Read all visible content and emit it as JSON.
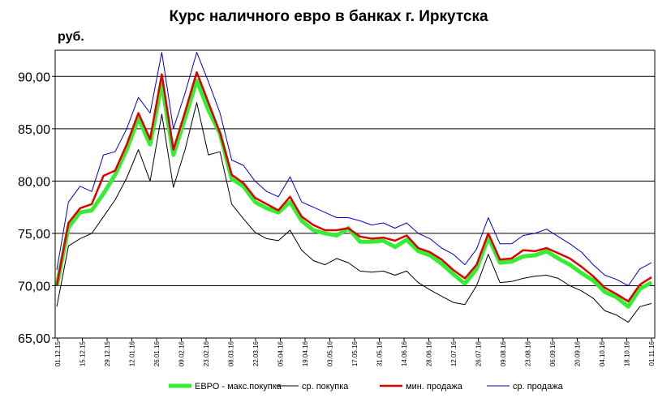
{
  "chart_data": {
    "type": "line",
    "title": "Курс наличного евро в банках г. Иркутска",
    "ylabel": "руб.",
    "xlabel": "",
    "ylim": [
      65,
      92.5
    ],
    "yticks": [
      "65,00",
      "70,00",
      "75,00",
      "80,00",
      "85,00",
      "90,00"
    ],
    "ytick_values": [
      65,
      70,
      75,
      80,
      85,
      90
    ],
    "grid": true,
    "legend_position": "bottom",
    "x_tick_labels": [
      "01.12.15",
      "15.12.15",
      "29.12.15",
      "12.01.16",
      "26.01.16",
      "09.02.16",
      "23.02.16",
      "08.03.16",
      "22.03.16",
      "05.04.16",
      "19.04.16",
      "03.05.16",
      "17.05.16",
      "31.05.16",
      "14.06.16",
      "28.06.16",
      "12.07.16",
      "26.07.16",
      "09.08.16",
      "23.08.16",
      "06.09.16",
      "20.09.16",
      "04.10.16",
      "18.10.16",
      "01.11.16"
    ],
    "x": [
      "01.12.15",
      "08.12.15",
      "15.12.15",
      "22.12.15",
      "29.12.15",
      "05.01.16",
      "12.01.16",
      "19.01.16",
      "22.01.16",
      "26.01.16",
      "02.02.16",
      "06.02.16",
      "09.02.16",
      "16.02.16",
      "23.02.16",
      "01.03.16",
      "08.03.16",
      "15.03.16",
      "22.03.16",
      "29.03.16",
      "05.04.16",
      "12.04.16",
      "19.04.16",
      "26.04.16",
      "03.05.16",
      "10.05.16",
      "17.05.16",
      "24.05.16",
      "31.05.16",
      "07.06.16",
      "14.06.16",
      "21.06.16",
      "28.06.16",
      "05.07.16",
      "12.07.16",
      "19.07.16",
      "26.07.16",
      "02.08.16",
      "09.08.16",
      "16.08.16",
      "23.08.16",
      "30.08.16",
      "06.09.16",
      "13.09.16",
      "20.09.16",
      "27.09.16",
      "04.10.16",
      "11.10.16",
      "18.10.16",
      "25.10.16",
      "01.11.16",
      "03.11.16"
    ],
    "series": [
      {
        "name": "ЕВРО - макс.покупка",
        "color": "#33ee33",
        "values": [
          70.0,
          75.6,
          77.0,
          77.2,
          78.8,
          80.6,
          83.0,
          86.0,
          83.5,
          89.3,
          82.5,
          86.0,
          89.6,
          86.8,
          84.5,
          80.2,
          79.5,
          78.0,
          77.4,
          77.0,
          78.0,
          76.2,
          75.3,
          75.0,
          74.8,
          75.5,
          74.2,
          74.2,
          74.3,
          73.7,
          74.4,
          73.3,
          72.9,
          72.1,
          71.1,
          70.2,
          71.6,
          74.6,
          72.2,
          72.3,
          72.8,
          72.9,
          73.3,
          72.6,
          72.0,
          71.2,
          70.5,
          69.4,
          68.9,
          68.0,
          69.7,
          70.3
        ]
      },
      {
        "name": "ср. покупка",
        "color": "#000000",
        "values": [
          68.0,
          73.8,
          74.5,
          75.0,
          76.6,
          78.2,
          80.3,
          83.0,
          80.0,
          86.4,
          79.4,
          83.0,
          87.5,
          82.5,
          82.8,
          77.8,
          76.4,
          75.1,
          74.5,
          74.3,
          75.3,
          73.4,
          72.4,
          72.0,
          72.6,
          72.2,
          71.4,
          71.3,
          71.4,
          71.0,
          71.4,
          70.3,
          69.6,
          69.0,
          68.4,
          68.2,
          70.0,
          73.0,
          70.3,
          70.4,
          70.7,
          70.9,
          71.0,
          70.7,
          70.0,
          69.5,
          68.8,
          67.6,
          67.2,
          66.5,
          68.0,
          68.3
        ]
      },
      {
        "name": "мин. продажа",
        "color": "#e00000",
        "values": [
          70.0,
          76.0,
          77.4,
          77.8,
          80.5,
          81.0,
          83.5,
          86.5,
          84.0,
          90.2,
          83.0,
          86.6,
          90.4,
          87.5,
          84.6,
          80.6,
          79.8,
          78.4,
          77.8,
          77.2,
          78.5,
          76.6,
          75.8,
          75.3,
          75.3,
          75.5,
          74.7,
          74.5,
          74.6,
          74.3,
          74.8,
          73.6,
          73.2,
          72.5,
          71.5,
          70.7,
          72.0,
          75.0,
          72.5,
          72.6,
          73.4,
          73.3,
          73.6,
          73.1,
          72.6,
          71.8,
          70.9,
          69.8,
          69.2,
          68.5,
          70.1,
          70.8
        ]
      },
      {
        "name": "ср. продажа",
        "color": "#0000cc",
        "values": [
          71.5,
          78.0,
          79.5,
          79.0,
          82.5,
          82.8,
          85.0,
          88.0,
          86.5,
          92.3,
          85.0,
          88.4,
          92.3,
          89.5,
          86.5,
          82.0,
          81.5,
          80.0,
          79.0,
          78.5,
          80.4,
          78.0,
          77.5,
          77.0,
          76.5,
          76.5,
          76.2,
          75.8,
          76.0,
          75.5,
          76.0,
          75.0,
          74.5,
          73.6,
          73.0,
          72.0,
          73.5,
          76.5,
          74.0,
          74.0,
          74.8,
          75.0,
          75.4,
          74.7,
          74.0,
          73.2,
          72.0,
          71.0,
          70.6,
          70.0,
          71.6,
          72.2
        ]
      }
    ]
  }
}
